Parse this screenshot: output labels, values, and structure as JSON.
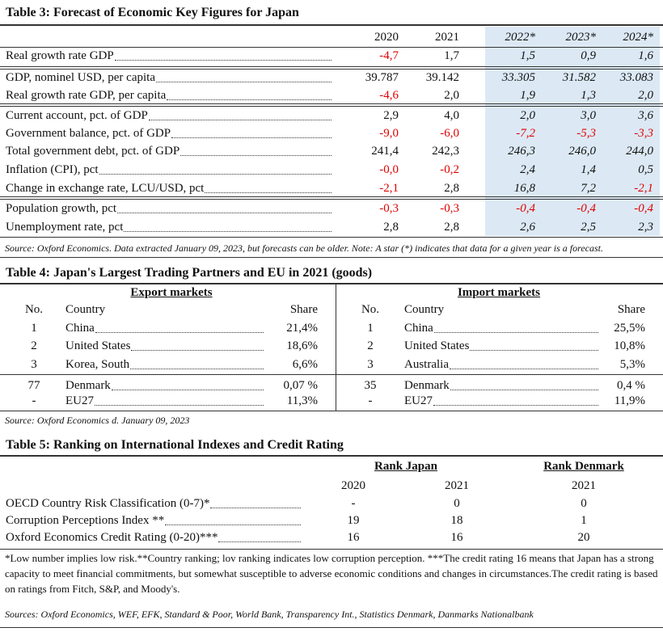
{
  "table3": {
    "title": "Table 3: Forecast of Economic Key Figures for Japan",
    "columns": [
      "2020",
      "2021",
      "2022*",
      "2023*",
      "2024*"
    ],
    "rows": [
      {
        "label": "Real growth rate GDP",
        "values": [
          "-4,7",
          "1,7",
          "1,5",
          "0,9",
          "1,6"
        ]
      },
      {
        "label": "GDP, nominel USD, per capita",
        "values": [
          "39.787",
          "39.142",
          "33.305",
          "31.582",
          "33.083"
        ]
      },
      {
        "label": "Real growth rate GDP, per capita",
        "values": [
          "-4,6",
          "2,0",
          "1,9",
          "1,3",
          "2,0"
        ]
      },
      {
        "label": "Current account, pct. of GDP",
        "values": [
          "2,9",
          "4,0",
          "2,0",
          "3,0",
          "3,6"
        ]
      },
      {
        "label": "Government balance, pct. of GDP",
        "values": [
          "-9,0",
          "-6,0",
          "-7,2",
          "-5,3",
          "-3,3"
        ]
      },
      {
        "label": "Total government debt, pct. of GDP",
        "values": [
          "241,4",
          "242,3",
          "246,3",
          "246,0",
          "244,0"
        ]
      },
      {
        "label": "Inflation (CPI), pct",
        "values": [
          "-0,0",
          "-0,2",
          "2,4",
          "1,4",
          "0,5"
        ]
      },
      {
        "label": "Change in exchange rate, LCU/USD, pct",
        "values": [
          "-2,1",
          "2,8",
          "16,8",
          "7,2",
          "-2,1"
        ]
      },
      {
        "label": "Population growth, pct",
        "values": [
          "-0,3",
          "-0,3",
          "-0,4",
          "-0,4",
          "-0,4"
        ]
      },
      {
        "label": "Unemployment rate, pct",
        "values": [
          "2,8",
          "2,8",
          "2,6",
          "2,5",
          "2,3"
        ]
      }
    ],
    "source": "Source: Oxford Economics.  Data extracted January 09, 2023, but forecasts can be older. Note: A star (*) indicates that data for a given year is a forecast."
  },
  "table4": {
    "title": "Table 4: Japan's Largest Trading Partners and EU in 2021 (goods)",
    "panels": [
      {
        "heading": "Export markets",
        "columns": [
          "No.",
          "Country",
          "Share"
        ],
        "rows": [
          [
            "1",
            "China",
            "21,4%"
          ],
          [
            "2",
            "United States",
            "18,6%"
          ],
          [
            "3",
            "Korea, South",
            "6,6%"
          ],
          [
            "77",
            "Denmark",
            "0,07 %"
          ],
          [
            "-",
            "EU27",
            "11,3%"
          ]
        ]
      },
      {
        "heading": "Import markets",
        "columns": [
          "No.",
          "Country",
          "Share"
        ],
        "rows": [
          [
            "1",
            "China",
            "25,5%"
          ],
          [
            "2",
            "United States",
            "10,8%"
          ],
          [
            "3",
            "Australia",
            "5,3%"
          ],
          [
            "35",
            "Denmark",
            "0,4 %"
          ],
          [
            "-",
            "EU27",
            "11,9%"
          ]
        ]
      }
    ],
    "source": "Source: Oxford Economics d. January 09, 2023"
  },
  "table5": {
    "title": "Table 5: Ranking on International Indexes and Credit Rating",
    "groups": [
      "Rank Japan",
      "Rank Denmark"
    ],
    "columns": [
      "2020",
      "2021",
      "2021"
    ],
    "rows": [
      {
        "label": "OECD Country Risk Classification (0-7)*",
        "values": [
          "-",
          "0",
          "0"
        ]
      },
      {
        "label": "Corruption Perceptions Index **",
        "values": [
          "19",
          "18",
          "1"
        ]
      },
      {
        "label": "Oxford Economics Credit Rating (0-20)***",
        "values": [
          "16",
          "16",
          "20"
        ]
      }
    ],
    "footnote": "*Low number implies low risk.**Country ranking; lov ranking indicates low corruption perception. ***The credit rating 16 means that Japan has a strong capacity to meet financial commitments, but somewhat susceptible to adverse economic conditions and changes in circumstances.The credit rating is based on ratings from Fitch, S&P, and Moody's.",
    "sources": "Sources: Oxford Economics, WEF, EFK, Standard & Poor, World Bank, Transparency Int., Statistics Denmark, Danmarks Nationalbank"
  }
}
